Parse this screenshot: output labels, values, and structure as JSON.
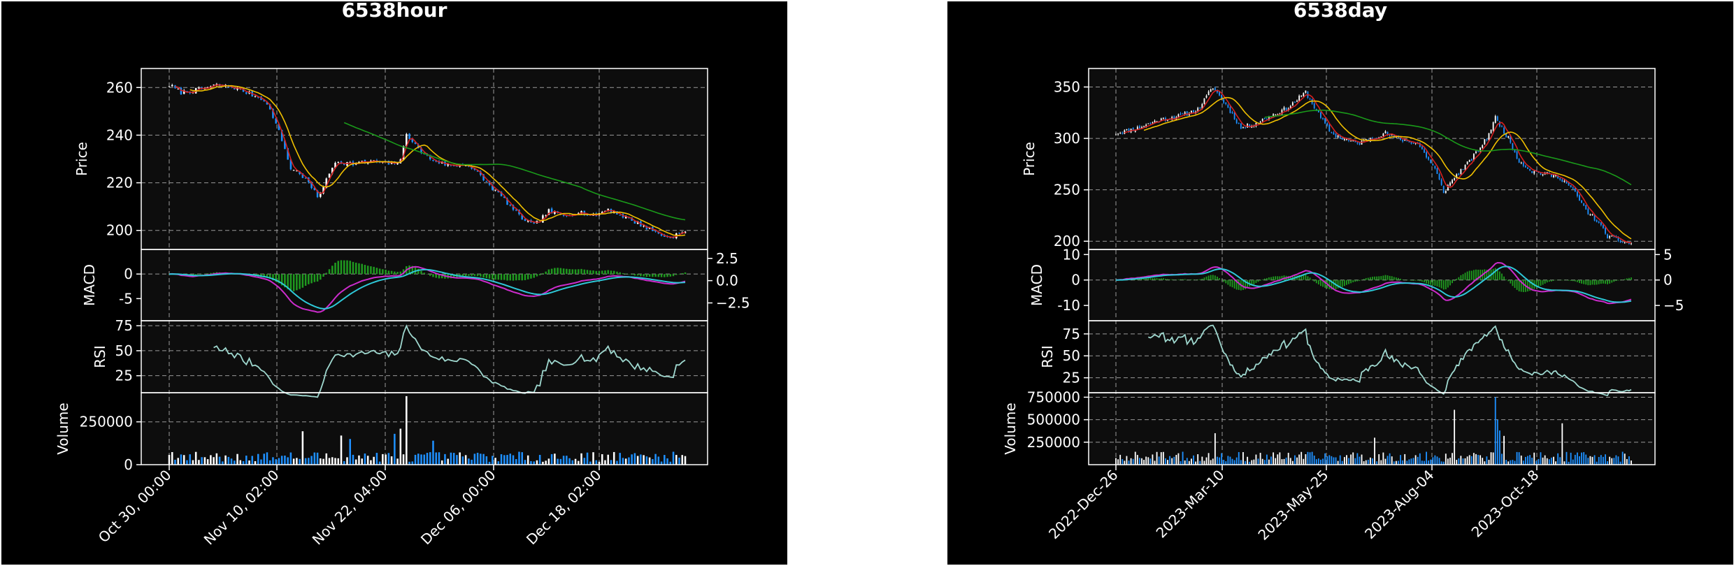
{
  "chart_data": [
    {
      "type": "candlestick",
      "title": "6538hour",
      "x_ticks": [
        "Oct 30, 00:00",
        "Nov 10, 02:00",
        "Nov 22, 04:00",
        "Dec 06, 00:00",
        "Dec 18, 02:00"
      ],
      "panels": {
        "price": {
          "ylabel": "Price",
          "ylim": [
            192,
            268
          ],
          "ticks": [
            200,
            220,
            240,
            260
          ],
          "anchors": [
            [
              0,
              261
            ],
            [
              4,
              258
            ],
            [
              10,
              259
            ],
            [
              16,
              261
            ],
            [
              22,
              260
            ],
            [
              28,
              257
            ],
            [
              32,
              255
            ],
            [
              35,
              248
            ],
            [
              38,
              238
            ],
            [
              41,
              226
            ],
            [
              44,
              224
            ],
            [
              47,
              220
            ],
            [
              50,
              214
            ],
            [
              53,
              221
            ],
            [
              56,
              229
            ],
            [
              62,
              228
            ],
            [
              68,
              229
            ],
            [
              74,
              228
            ],
            [
              78,
              229
            ],
            [
              80,
              241
            ],
            [
              84,
              234
            ],
            [
              88,
              230
            ],
            [
              95,
              227
            ],
            [
              100,
              228
            ],
            [
              104,
              224
            ],
            [
              108,
              219
            ],
            [
              113,
              213
            ],
            [
              118,
              206
            ],
            [
              123,
              202
            ],
            [
              128,
              208
            ],
            [
              133,
              206
            ],
            [
              138,
              208
            ],
            [
              143,
              206
            ],
            [
              148,
              209
            ],
            [
              153,
              206
            ],
            [
              158,
              203
            ],
            [
              163,
              200
            ],
            [
              168,
              197
            ],
            [
              173,
              199
            ]
          ],
          "ma": [
            {
              "color": "#d62020",
              "window": 3
            },
            {
              "color": "#f0c000",
              "window": 8
            },
            {
              "color": "#1a9a1a",
              "window": 60
            }
          ]
        },
        "macd": {
          "ylabel": "MACD",
          "ylim": [
            -9.5,
            5
          ],
          "left_ticks": [
            0,
            -5
          ],
          "right_ylim": [
            -4.5,
            3.5
          ],
          "right_ticks": [
            2.5,
            0.0,
            -2.5
          ],
          "right_tick_labels": [
            "2.5",
            "0.0",
            "−2.5"
          ]
        },
        "rsi": {
          "ylabel": "RSI",
          "ylim": [
            8,
            80
          ],
          "ticks": [
            75,
            50,
            25
          ]
        },
        "volume": {
          "ylabel": "Volume",
          "ylim": [
            0,
            420000
          ],
          "ticks": [
            250000,
            0
          ],
          "tick_labels": [
            "250000",
            "0"
          ],
          "spikes": [
            [
              45,
              195000,
              "up"
            ],
            [
              58,
              170000,
              "up"
            ],
            [
              61,
              150000,
              "down"
            ],
            [
              76,
              180000,
              "down"
            ],
            [
              78,
              210000,
              "up"
            ],
            [
              80,
              400000,
              "up"
            ],
            [
              89,
              140000,
              "down"
            ]
          ]
        }
      },
      "bars": 175,
      "seed": 7,
      "colors": {
        "up": "#ffffff",
        "down": "#1e90ff",
        "macd_line": "#cc2ccc",
        "signal_line": "#2ec8d8",
        "hist": "#1f9a1f",
        "rsi": "#9fd8cf"
      }
    },
    {
      "type": "candlestick",
      "title": "6538day",
      "x_ticks": [
        "2022-Dec-26",
        "2023-Mar-10",
        "2023-May-25",
        "2023-Aug-04",
        "2023-Oct-18"
      ],
      "panels": {
        "price": {
          "ylabel": "Price",
          "ylim": [
            192,
            368
          ],
          "ticks": [
            350,
            300,
            250,
            200
          ],
          "anchors": [
            [
              0,
              305
            ],
            [
              10,
              310
            ],
            [
              20,
              318
            ],
            [
              30,
              322
            ],
            [
              38,
              328
            ],
            [
              45,
              350
            ],
            [
              52,
              330
            ],
            [
              58,
              310
            ],
            [
              65,
              315
            ],
            [
              72,
              322
            ],
            [
              80,
              330
            ],
            [
              88,
              345
            ],
            [
              95,
              320
            ],
            [
              100,
              305
            ],
            [
              105,
              300
            ],
            [
              112,
              295
            ],
            [
              118,
              300
            ],
            [
              125,
              305
            ],
            [
              130,
              300
            ],
            [
              140,
              295
            ],
            [
              148,
              270
            ],
            [
              152,
              248
            ],
            [
              157,
              262
            ],
            [
              165,
              280
            ],
            [
              172,
              300
            ],
            [
              176,
              320
            ],
            [
              182,
              300
            ],
            [
              187,
              278
            ],
            [
              193,
              268
            ],
            [
              200,
              265
            ],
            [
              206,
              262
            ],
            [
              212,
              250
            ],
            [
              218,
              230
            ],
            [
              223,
              220
            ],
            [
              228,
              205
            ],
            [
              234,
              200
            ],
            [
              238,
              198
            ]
          ],
          "ma": [
            {
              "color": "#d62020",
              "window": 5
            },
            {
              "color": "#f0c000",
              "window": 14
            },
            {
              "color": "#1a9a1a",
              "window": 70
            }
          ]
        },
        "macd": {
          "ylabel": "MACD",
          "ylim": [
            -16,
            12
          ],
          "left_ticks": [
            10,
            0,
            -10
          ],
          "right_ylim": [
            -8,
            6
          ],
          "right_ticks": [
            5,
            0,
            -5
          ],
          "right_tick_labels": [
            "5",
            "0",
            "−5"
          ]
        },
        "rsi": {
          "ylabel": "RSI",
          "ylim": [
            8,
            90
          ],
          "ticks": [
            75,
            50,
            25
          ]
        },
        "volume": {
          "ylabel": "Volume",
          "ylim": [
            0,
            800000
          ],
          "ticks": [
            750000,
            500000,
            250000
          ],
          "tick_labels": [
            "750000",
            "500000",
            "250000"
          ],
          "spikes": [
            [
              46,
              350000,
              "up"
            ],
            [
              120,
              300000,
              "up"
            ],
            [
              157,
              610000,
              "up"
            ],
            [
              176,
              750000,
              "down"
            ],
            [
              177,
              500000,
              "down"
            ],
            [
              178,
              380000,
              "down"
            ],
            [
              180,
              320000,
              "up"
            ],
            [
              207,
              460000,
              "up"
            ]
          ]
        }
      },
      "bars": 240,
      "seed": 11,
      "colors": {
        "up": "#ffffff",
        "down": "#1e90ff",
        "macd_line": "#cc2ccc",
        "signal_line": "#2ec8d8",
        "hist": "#1f9a1f",
        "rsi": "#9fd8cf"
      }
    }
  ]
}
